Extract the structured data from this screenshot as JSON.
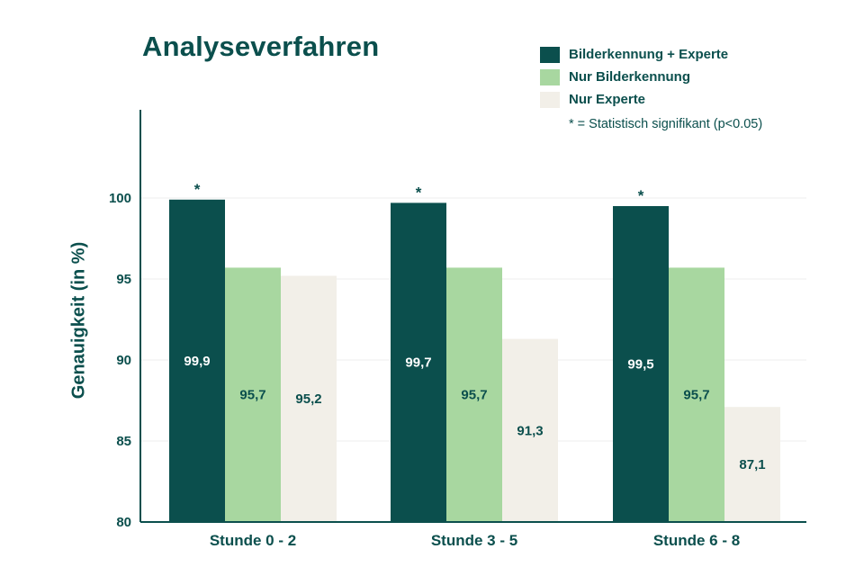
{
  "chart_data": {
    "type": "bar",
    "title": "Analyseverfahren",
    "ylabel": "Genauigkeit (in %)",
    "xlabel": "",
    "ylim": [
      80,
      105
    ],
    "yticks": [
      "80",
      "85",
      "90",
      "95",
      "100"
    ],
    "categories": [
      "Stunde 0 - 2",
      "Stunde 3 - 5",
      "Stunde 6 - 8"
    ],
    "series": [
      {
        "name": "Bilderkennung + Experte",
        "color": "#0b4f4d",
        "label_color": "#ffffff",
        "values": [
          99.9,
          99.7,
          99.5
        ],
        "labels": [
          "99,9",
          "99,7",
          "99,5"
        ]
      },
      {
        "name": "Nur Bilderkennung",
        "color": "#a8d7a0",
        "label_color": "#0b4f4d",
        "values": [
          95.7,
          95.7,
          95.7
        ],
        "labels": [
          "95,7",
          "95,7",
          "95,7"
        ]
      },
      {
        "name": "Nur Experte",
        "color": "#f2efe8",
        "label_color": "#0b4f4d",
        "values": [
          95.2,
          91.3,
          87.1
        ],
        "labels": [
          "95,2",
          "91,3",
          "87,1"
        ]
      }
    ],
    "significance_marker": "*",
    "significant_series": "Bilderkennung + Experte",
    "note": "* = Statistisch signifikant (p<0.05)",
    "grid": true,
    "legend_position": "top-right"
  }
}
